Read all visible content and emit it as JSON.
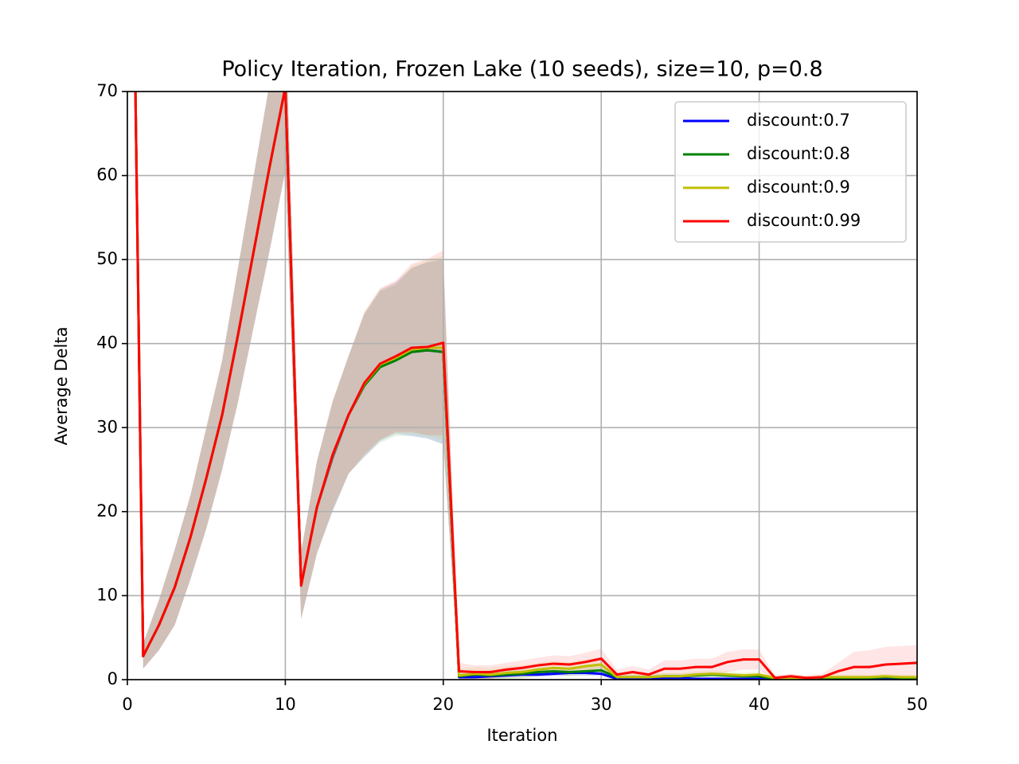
{
  "chart_data": {
    "type": "line",
    "title": "Policy Iteration, Frozen Lake (10 seeds), size=10, p=0.8",
    "xlabel": "Iteration",
    "ylabel": "Average Delta",
    "x": [
      0,
      1,
      2,
      3,
      4,
      5,
      6,
      7,
      8,
      9,
      10,
      11,
      12,
      13,
      14,
      15,
      16,
      17,
      18,
      19,
      20,
      21,
      22,
      23,
      24,
      25,
      26,
      27,
      28,
      29,
      30,
      31,
      32,
      33,
      34,
      35,
      36,
      37,
      38,
      39,
      40,
      41,
      42,
      43,
      44,
      45,
      46,
      47,
      48,
      49,
      50
    ],
    "series": [
      {
        "name": "discount:0.7",
        "color": "#0000ff",
        "values": [
          140,
          2.8,
          6.5,
          11,
          17,
          24,
          31.5,
          41,
          51,
          61,
          70.5,
          11.2,
          20.5,
          26.5,
          31.5,
          35,
          37.4,
          38.3,
          39,
          39.2,
          39,
          0.3,
          0.3,
          0.4,
          0.5,
          0.6,
          0.6,
          0.7,
          0.8,
          0.8,
          0.7,
          0.1,
          0.1,
          0.1,
          0.2,
          0.2,
          0.1,
          0.1,
          0.1,
          0.1,
          0.1,
          0.1,
          0.1,
          0.1,
          0.1,
          0.1,
          0.1,
          0.1,
          0.1,
          0.1,
          0.1
        ],
        "std": [
          10,
          1.5,
          3,
          4.5,
          5,
          6,
          6.5,
          8,
          9,
          10,
          10,
          4,
          5.5,
          6.5,
          7,
          8.5,
          9,
          9,
          10,
          10.5,
          11,
          0.3,
          0.3,
          0.3,
          0.3,
          0.3,
          0.3,
          0.3,
          0.3,
          0.3,
          0.3,
          0.2,
          0.2,
          0.2,
          0.2,
          0.2,
          0.2,
          0.2,
          0.2,
          0.2,
          0.2,
          0.1,
          0.1,
          0.1,
          0.1,
          0.1,
          0.1,
          0.1,
          0.1,
          0.1,
          0.1
        ]
      },
      {
        "name": "discount:0.8",
        "color": "#008000",
        "values": [
          140,
          2.8,
          6.5,
          11,
          17,
          24,
          31.5,
          41,
          51,
          61,
          70.5,
          11.2,
          20.5,
          26.6,
          31.5,
          35,
          37.2,
          38,
          39,
          39.2,
          39,
          0.4,
          0.6,
          0.5,
          0.6,
          0.7,
          0.9,
          1.0,
          0.9,
          1.0,
          1.1,
          0.3,
          0.3,
          0.3,
          0.4,
          0.4,
          0.5,
          0.6,
          0.5,
          0.4,
          0.4,
          0.1,
          0.1,
          0.1,
          0.2,
          0.2,
          0.2,
          0.2,
          0.3,
          0.2,
          0.2
        ],
        "std": [
          10,
          1.5,
          3,
          4.5,
          5,
          6,
          6.5,
          8,
          9,
          10,
          10,
          4,
          5.5,
          6.5,
          7,
          8.5,
          9,
          9,
          10,
          10.5,
          11,
          0.5,
          0.5,
          0.5,
          0.5,
          0.5,
          0.5,
          0.5,
          0.5,
          0.5,
          0.5,
          0.3,
          0.3,
          0.3,
          0.3,
          0.3,
          0.3,
          0.3,
          0.3,
          0.3,
          0.3,
          0.2,
          0.2,
          0.2,
          0.2,
          0.2,
          0.2,
          0.2,
          0.2,
          0.2,
          0.2
        ]
      },
      {
        "name": "discount:0.9",
        "color": "#bfbf00",
        "values": [
          140,
          2.8,
          6.5,
          11,
          17,
          24,
          31.5,
          41,
          51,
          61,
          70.5,
          11.2,
          20.5,
          26.7,
          31.5,
          35.2,
          37.5,
          38.3,
          39.3,
          39.5,
          39.5,
          0.5,
          0.7,
          0.6,
          0.8,
          0.9,
          1.2,
          1.4,
          1.3,
          1.6,
          1.8,
          0.3,
          0.3,
          0.3,
          0.4,
          0.4,
          0.6,
          0.7,
          0.6,
          0.5,
          0.6,
          0.2,
          0.2,
          0.2,
          0.3,
          0.3,
          0.3,
          0.3,
          0.4,
          0.3,
          0.3
        ],
        "std": [
          10,
          1.5,
          3,
          4.5,
          5,
          6,
          6.5,
          8,
          9,
          10,
          10,
          4,
          5.5,
          6.5,
          7,
          8.5,
          9,
          9,
          10,
          10.5,
          11,
          0.8,
          0.8,
          0.8,
          0.8,
          0.8,
          0.8,
          0.8,
          0.8,
          0.8,
          0.8,
          0.4,
          0.4,
          0.4,
          0.4,
          0.4,
          0.4,
          0.4,
          0.4,
          0.4,
          0.4,
          0.3,
          0.3,
          0.3,
          0.3,
          0.3,
          0.3,
          0.3,
          0.3,
          0.3,
          0.3
        ]
      },
      {
        "name": "discount:0.99",
        "color": "#ff0000",
        "values": [
          140,
          2.8,
          6.5,
          11,
          17,
          24,
          31.5,
          41,
          51,
          61,
          70.5,
          11.2,
          20.5,
          26.8,
          31.5,
          35.3,
          37.6,
          38.5,
          39.5,
          39.6,
          40.1,
          1.0,
          0.9,
          0.9,
          1.2,
          1.4,
          1.7,
          1.9,
          1.8,
          2.1,
          2.5,
          0.6,
          0.9,
          0.6,
          1.3,
          1.3,
          1.5,
          1.5,
          2.1,
          2.4,
          2.4,
          0.2,
          0.4,
          0.2,
          0.3,
          1.0,
          1.5,
          1.5,
          1.8,
          1.9,
          2.0
        ],
        "std": [
          10,
          1.5,
          3,
          4.5,
          5,
          6,
          6.5,
          8,
          9,
          10,
          10,
          4,
          5.5,
          6.5,
          7,
          8.5,
          9,
          9,
          10,
          10.5,
          11,
          1.0,
          0.8,
          0.8,
          0.8,
          0.9,
          0.9,
          1.0,
          1.0,
          1.1,
          1.2,
          0.6,
          0.7,
          0.6,
          1.0,
          1.0,
          1.0,
          1.0,
          1.2,
          1.2,
          1.2,
          0.3,
          0.3,
          0.3,
          0.4,
          1.0,
          1.8,
          2.0,
          2.1,
          2.1,
          2.1
        ]
      }
    ],
    "xlim": [
      0,
      50
    ],
    "ylim": [
      0,
      70
    ],
    "xticks": [
      0,
      10,
      20,
      30,
      40,
      50
    ],
    "yticks": [
      0,
      10,
      20,
      30,
      40,
      50,
      60,
      70
    ],
    "grid": true,
    "legend": "upper right"
  }
}
